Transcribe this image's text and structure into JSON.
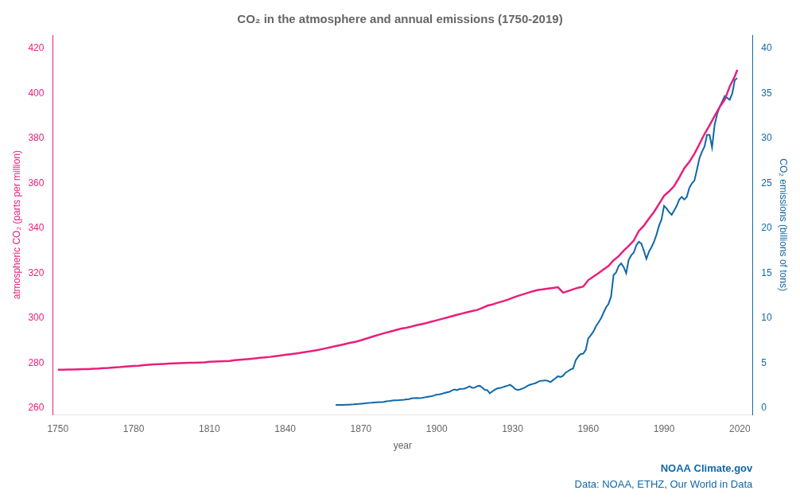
{
  "chart_data": {
    "type": "line",
    "title": "CO₂ in the atmosphere and annual emissions (1750-2019)",
    "x_label": "year",
    "y_label": "atmospheric CO₂ (parts per million)",
    "y2_label": "CO₂ emissions (billions of tons)",
    "xlim": [
      1748,
      2025
    ],
    "xticks": [
      1750,
      1780,
      1810,
      1840,
      1870,
      1900,
      1930,
      1960,
      1990,
      2020
    ],
    "ylim": [
      257,
      426
    ],
    "yticks": [
      260,
      280,
      300,
      320,
      340,
      360,
      380,
      400,
      420
    ],
    "y2lim": [
      -0.72,
      41.5
    ],
    "y2ticks": [
      0,
      5,
      10,
      15,
      20,
      25,
      30,
      35,
      40
    ],
    "grid": false,
    "annotations": [
      "NOAA Climate.gov",
      "Data: NOAA, ETHZ, Our World in Data"
    ],
    "series": [
      {
        "color": "#E8207A",
        "x": [
          1750,
          1752,
          1754,
          1756,
          1758,
          1760,
          1762,
          1764,
          1766,
          1768,
          1770,
          1772,
          1774,
          1776,
          1778,
          1780,
          1782,
          1784,
          1786,
          1788,
          1790,
          1792,
          1794,
          1796,
          1798,
          1800,
          1802,
          1804,
          1806,
          1808,
          1810,
          1812,
          1814,
          1816,
          1818,
          1820,
          1822,
          1824,
          1826,
          1828,
          1830,
          1832,
          1834,
          1836,
          1838,
          1840,
          1842,
          1844,
          1846,
          1848,
          1850,
          1852,
          1854,
          1856,
          1858,
          1860,
          1862,
          1864,
          1866,
          1868,
          1870,
          1872,
          1874,
          1876,
          1878,
          1880,
          1882,
          1884,
          1886,
          1888,
          1890,
          1892,
          1894,
          1896,
          1898,
          1900,
          1902,
          1904,
          1906,
          1908,
          1910,
          1912,
          1914,
          1916,
          1918,
          1920,
          1922,
          1924,
          1926,
          1928,
          1930,
          1932,
          1934,
          1936,
          1938,
          1940,
          1942,
          1944,
          1946,
          1948,
          1950,
          1952,
          1954,
          1956,
          1958,
          1960,
          1962,
          1964,
          1966,
          1968,
          1970,
          1972,
          1974,
          1976,
          1978,
          1980,
          1982,
          1984,
          1986,
          1988,
          1990,
          1992,
          1994,
          1996,
          1998,
          2000,
          2002,
          2004,
          2006,
          2008,
          2010,
          2012,
          2014,
          2016,
          2018,
          2019
        ],
        "values": [
          277.0,
          277.0,
          277.1,
          277.1,
          277.2,
          277.3,
          277.3,
          277.4,
          277.5,
          277.7,
          277.8,
          278.0,
          278.1,
          278.3,
          278.5,
          278.7,
          278.8,
          279.0,
          279.2,
          279.4,
          279.5,
          279.6,
          279.7,
          279.8,
          279.9,
          280.0,
          280.1,
          280.1,
          280.2,
          280.3,
          280.5,
          280.6,
          280.7,
          280.8,
          280.9,
          281.2,
          281.4,
          281.6,
          281.8,
          282.0,
          282.3,
          282.5,
          282.7,
          283.0,
          283.3,
          283.6,
          283.9,
          284.2,
          284.5,
          284.9,
          285.2,
          285.6,
          286.0,
          286.5,
          287.0,
          287.5,
          288.0,
          288.5,
          289.0,
          289.5,
          290.1,
          290.8,
          291.5,
          292.2,
          292.9,
          293.5,
          294.1,
          294.7,
          295.3,
          295.7,
          296.2,
          296.8,
          297.3,
          297.8,
          298.4,
          299.0,
          299.6,
          300.2,
          300.8,
          301.4,
          302.0,
          302.6,
          303.1,
          303.6,
          304.5,
          305.5,
          306.0,
          306.8,
          307.4,
          308.1,
          309.0,
          309.8,
          310.5,
          311.2,
          311.9,
          312.5,
          312.8,
          313.1,
          313.4,
          313.7,
          311.3,
          312.0,
          312.8,
          313.5,
          314.0,
          316.9,
          318.4,
          319.9,
          321.6,
          323.2,
          325.7,
          327.5,
          330.0,
          332.1,
          334.5,
          338.7,
          341.1,
          344.3,
          347.2,
          350.8,
          354.4,
          356.4,
          358.8,
          362.6,
          366.7,
          369.5,
          373.1,
          377.5,
          381.9,
          385.8,
          389.9,
          393.9,
          397.2,
          403.1,
          407.6,
          410.5
        ]
      },
      {
        "color": "#1068A8",
        "axis": "y2",
        "x": [
          1860,
          1861,
          1862,
          1863,
          1864,
          1865,
          1866,
          1867,
          1868,
          1869,
          1870,
          1871,
          1872,
          1873,
          1874,
          1875,
          1876,
          1877,
          1878,
          1879,
          1880,
          1881,
          1882,
          1883,
          1884,
          1885,
          1886,
          1887,
          1888,
          1889,
          1890,
          1891,
          1892,
          1893,
          1894,
          1895,
          1896,
          1897,
          1898,
          1899,
          1900,
          1901,
          1902,
          1903,
          1904,
          1905,
          1906,
          1907,
          1908,
          1909,
          1910,
          1911,
          1912,
          1913,
          1914,
          1915,
          1916,
          1917,
          1918,
          1919,
          1920,
          1921,
          1922,
          1923,
          1924,
          1925,
          1926,
          1927,
          1928,
          1929,
          1930,
          1931,
          1932,
          1933,
          1934,
          1935,
          1936,
          1937,
          1938,
          1939,
          1940,
          1941,
          1942,
          1943,
          1944,
          1945,
          1946,
          1947,
          1948,
          1949,
          1950,
          1951,
          1952,
          1953,
          1954,
          1955,
          1956,
          1957,
          1958,
          1959,
          1960,
          1961,
          1962,
          1963,
          1964,
          1965,
          1966,
          1967,
          1968,
          1969,
          1970,
          1971,
          1972,
          1973,
          1974,
          1975,
          1976,
          1977,
          1978,
          1979,
          1980,
          1981,
          1982,
          1983,
          1984,
          1985,
          1986,
          1987,
          1988,
          1989,
          1990,
          1991,
          1992,
          1993,
          1994,
          1995,
          1996,
          1997,
          1998,
          1999,
          2000,
          2001,
          2002,
          2003,
          2004,
          2005,
          2006,
          2007,
          2008,
          2009,
          2010,
          2011,
          2012,
          2013,
          2014,
          2015,
          2016,
          2017,
          2018,
          2019
        ],
        "values": [
          0.35,
          0.36,
          0.37,
          0.37,
          0.38,
          0.39,
          0.41,
          0.42,
          0.44,
          0.46,
          0.49,
          0.52,
          0.55,
          0.59,
          0.6,
          0.62,
          0.64,
          0.66,
          0.67,
          0.69,
          0.75,
          0.79,
          0.83,
          0.86,
          0.87,
          0.88,
          0.91,
          0.93,
          0.97,
          1.01,
          1.09,
          1.12,
          1.14,
          1.12,
          1.13,
          1.19,
          1.25,
          1.29,
          1.33,
          1.41,
          1.5,
          1.53,
          1.59,
          1.68,
          1.76,
          1.82,
          1.97,
          2.09,
          2.01,
          2.12,
          2.14,
          2.17,
          2.29,
          2.42,
          2.27,
          2.28,
          2.44,
          2.49,
          2.28,
          2.03,
          2.0,
          1.66,
          1.86,
          2.05,
          2.19,
          2.24,
          2.32,
          2.42,
          2.49,
          2.61,
          2.41,
          2.14,
          2.02,
          2.08,
          2.19,
          2.31,
          2.49,
          2.61,
          2.69,
          2.77,
          2.92,
          3.04,
          3.06,
          3.09,
          3.03,
          2.9,
          3.11,
          3.32,
          3.55,
          3.47,
          3.6,
          3.95,
          4.12,
          4.31,
          4.41,
          5.31,
          5.74,
          6.02,
          6.06,
          6.48,
          7.78,
          8.11,
          8.51,
          9.1,
          9.51,
          9.97,
          10.6,
          11.2,
          11.6,
          12.4,
          14.8,
          15.1,
          15.8,
          16.1,
          15.7,
          15.0,
          16.5,
          17.0,
          17.3,
          18.1,
          18.5,
          18.3,
          17.5,
          16.6,
          17.4,
          17.9,
          18.5,
          19.3,
          20.3,
          21.0,
          22.5,
          22.2,
          21.8,
          21.5,
          22.0,
          22.5,
          23.2,
          23.5,
          23.2,
          23.5,
          24.5,
          25.0,
          25.3,
          26.5,
          27.8,
          28.5,
          29.1,
          30.4,
          30.4,
          29.0,
          31.5,
          32.7,
          33.5,
          34.1,
          34.7,
          34.5,
          34.3,
          35.0,
          36.5,
          36.7
        ]
      }
    ]
  }
}
